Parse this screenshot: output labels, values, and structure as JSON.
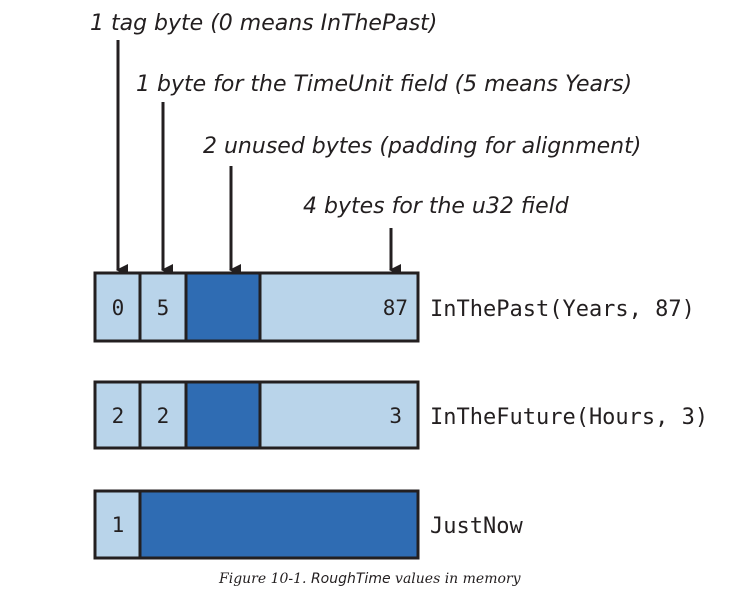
{
  "colors": {
    "light_cell": "#b9d4ea",
    "dark_cell": "#2f6cb3",
    "outline": "#231f20",
    "text": "#231f20"
  },
  "annotations": [
    {
      "text": "1 tag byte (0 means InThePast)"
    },
    {
      "text": "1 byte for the TimeUnit field (5 means Years)"
    },
    {
      "text": "2 unused bytes (padding for alignment)"
    },
    {
      "text": "4 bytes for the u32 field"
    }
  ],
  "rows": [
    {
      "label": "InThePast(Years, 87)",
      "cells": [
        {
          "text": "0",
          "shade": "light",
          "bytes": 1
        },
        {
          "text": "5",
          "shade": "light",
          "bytes": 1
        },
        {
          "text": "",
          "shade": "dark",
          "bytes": 2
        },
        {
          "text": "87",
          "shade": "light",
          "bytes": 4
        }
      ]
    },
    {
      "label": "InTheFuture(Hours, 3)",
      "cells": [
        {
          "text": "2",
          "shade": "light",
          "bytes": 1
        },
        {
          "text": "2",
          "shade": "light",
          "bytes": 1
        },
        {
          "text": "",
          "shade": "dark",
          "bytes": 2
        },
        {
          "text": "3",
          "shade": "light",
          "bytes": 4
        }
      ]
    },
    {
      "label": "JustNow",
      "cells": [
        {
          "text": "1",
          "shade": "light",
          "bytes": 1
        },
        {
          "text": "",
          "shade": "dark",
          "bytes": 7
        }
      ]
    }
  ],
  "caption": {
    "prefix": "Figure 10-1.",
    "title": "RoughTime",
    "suffix": "values in memory"
  }
}
